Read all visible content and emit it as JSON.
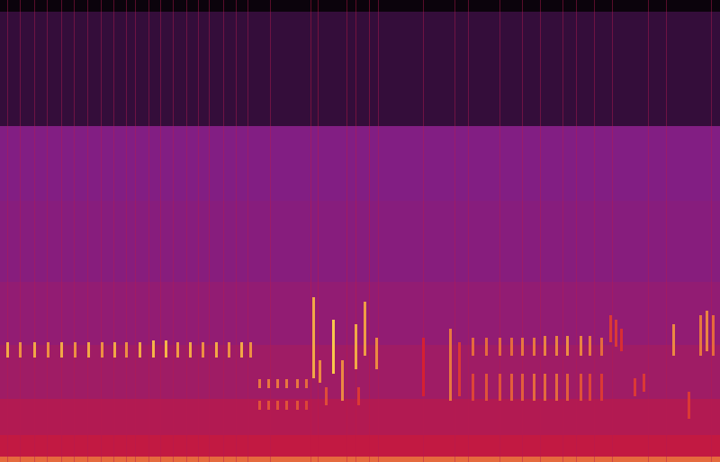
{
  "chart_data": {
    "type": "spectrogram",
    "tick_labels": false,
    "xlim": [
      0,
      800
    ],
    "ylim": [
      0,
      513
    ],
    "color_range": [
      0,
      1
    ],
    "colors": [
      "#000000",
      "#7b1e8a",
      "#d41830",
      "#ffe650"
    ],
    "bands": [
      {
        "y0": 0,
        "y1": 6,
        "value": 0.8
      },
      {
        "y0": 6,
        "y1": 30,
        "value": 0.6
      },
      {
        "y0": 30,
        "y1": 70,
        "value": 0.54
      },
      {
        "y0": 70,
        "y1": 130,
        "value": 0.47
      },
      {
        "y0": 130,
        "y1": 200,
        "value": 0.42
      },
      {
        "y0": 200,
        "y1": 290,
        "value": 0.38
      },
      {
        "y0": 290,
        "y1": 373,
        "value": 0.36
      },
      {
        "y0": 373,
        "y1": 500,
        "value": 0.14
      },
      {
        "y0": 500,
        "y1": 513,
        "value": 0.03
      }
    ],
    "streaks": [
      {
        "x": 8,
        "value": 0.55
      },
      {
        "x": 22,
        "value": 0.55
      },
      {
        "x": 38,
        "value": 0.55
      },
      {
        "x": 52,
        "value": 0.55
      },
      {
        "x": 68,
        "value": 0.55
      },
      {
        "x": 82,
        "value": 0.55
      },
      {
        "x": 97,
        "value": 0.55
      },
      {
        "x": 112,
        "value": 0.55
      },
      {
        "x": 126,
        "value": 0.55
      },
      {
        "x": 140,
        "value": 0.55
      },
      {
        "x": 150,
        "value": 0.55
      },
      {
        "x": 165,
        "value": 0.55
      },
      {
        "x": 178,
        "value": 0.55
      },
      {
        "x": 192,
        "value": 0.55
      },
      {
        "x": 207,
        "value": 0.55
      },
      {
        "x": 220,
        "value": 0.55
      },
      {
        "x": 232,
        "value": 0.55
      },
      {
        "x": 248,
        "value": 0.55
      },
      {
        "x": 262,
        "value": 0.55
      },
      {
        "x": 275,
        "value": 0.55
      },
      {
        "x": 300,
        "value": 0.55
      },
      {
        "x": 345,
        "value": 0.6
      },
      {
        "x": 353,
        "value": 0.6
      },
      {
        "x": 385,
        "value": 0.6
      },
      {
        "x": 395,
        "value": 0.6
      },
      {
        "x": 410,
        "value": 0.6
      },
      {
        "x": 420,
        "value": 0.55
      },
      {
        "x": 470,
        "value": 0.55
      },
      {
        "x": 505,
        "value": 0.55
      },
      {
        "x": 520,
        "value": 0.55
      },
      {
        "x": 555,
        "value": 0.55
      },
      {
        "x": 580,
        "value": 0.55
      },
      {
        "x": 600,
        "value": 0.55
      },
      {
        "x": 625,
        "value": 0.55
      },
      {
        "x": 640,
        "value": 0.55
      },
      {
        "x": 660,
        "value": 0.55
      },
      {
        "x": 680,
        "value": 0.55
      },
      {
        "x": 720,
        "value": 0.55
      },
      {
        "x": 740,
        "value": 0.55
      },
      {
        "x": 790,
        "value": 0.55
      }
    ],
    "calls": [
      {
        "x": 8,
        "y0": 116,
        "y1": 133,
        "value": 0.9
      },
      {
        "x": 22,
        "y0": 116,
        "y1": 133,
        "value": 0.86
      },
      {
        "x": 38,
        "y0": 116,
        "y1": 133,
        "value": 0.9
      },
      {
        "x": 53,
        "y0": 116,
        "y1": 133,
        "value": 0.86
      },
      {
        "x": 68,
        "y0": 116,
        "y1": 133,
        "value": 0.9
      },
      {
        "x": 83,
        "y0": 116,
        "y1": 133,
        "value": 0.86
      },
      {
        "x": 98,
        "y0": 116,
        "y1": 133,
        "value": 0.9
      },
      {
        "x": 113,
        "y0": 116,
        "y1": 133,
        "value": 0.86
      },
      {
        "x": 127,
        "y0": 116,
        "y1": 133,
        "value": 0.9
      },
      {
        "x": 140,
        "y0": 116,
        "y1": 133,
        "value": 0.86
      },
      {
        "x": 155,
        "y0": 116,
        "y1": 133,
        "value": 0.9
      },
      {
        "x": 170,
        "y0": 116,
        "y1": 135,
        "value": 0.92
      },
      {
        "x": 184,
        "y0": 116,
        "y1": 135,
        "value": 0.92
      },
      {
        "x": 197,
        "y0": 116,
        "y1": 133,
        "value": 0.88
      },
      {
        "x": 211,
        "y0": 116,
        "y1": 133,
        "value": 0.9
      },
      {
        "x": 225,
        "y0": 116,
        "y1": 133,
        "value": 0.86
      },
      {
        "x": 240,
        "y0": 116,
        "y1": 133,
        "value": 0.9
      },
      {
        "x": 254,
        "y0": 116,
        "y1": 133,
        "value": 0.86
      },
      {
        "x": 268,
        "y0": 116,
        "y1": 133,
        "value": 0.9
      },
      {
        "x": 278,
        "y0": 116,
        "y1": 133,
        "value": 0.86
      },
      {
        "x": 288,
        "y0": 82,
        "y1": 92,
        "value": 0.82
      },
      {
        "x": 298,
        "y0": 82,
        "y1": 92,
        "value": 0.82
      },
      {
        "x": 308,
        "y0": 82,
        "y1": 92,
        "value": 0.82
      },
      {
        "x": 318,
        "y0": 82,
        "y1": 92,
        "value": 0.82
      },
      {
        "x": 330,
        "y0": 82,
        "y1": 92,
        "value": 0.82
      },
      {
        "x": 340,
        "y0": 82,
        "y1": 92,
        "value": 0.8
      },
      {
        "x": 288,
        "y0": 58,
        "y1": 68,
        "value": 0.76
      },
      {
        "x": 298,
        "y0": 58,
        "y1": 68,
        "value": 0.76
      },
      {
        "x": 308,
        "y0": 58,
        "y1": 68,
        "value": 0.76
      },
      {
        "x": 318,
        "y0": 58,
        "y1": 68,
        "value": 0.76
      },
      {
        "x": 330,
        "y0": 58,
        "y1": 68,
        "value": 0.76
      },
      {
        "x": 340,
        "y0": 58,
        "y1": 68,
        "value": 0.74
      },
      {
        "x": 348,
        "y0": 93,
        "y1": 183,
        "value": 0.9
      },
      {
        "x": 355,
        "y0": 88,
        "y1": 113,
        "value": 0.85
      },
      {
        "x": 370,
        "y0": 98,
        "y1": 158,
        "value": 0.95
      },
      {
        "x": 380,
        "y0": 68,
        "y1": 113,
        "value": 0.85
      },
      {
        "x": 395,
        "y0": 103,
        "y1": 153,
        "value": 0.9
      },
      {
        "x": 405,
        "y0": 118,
        "y1": 178,
        "value": 0.88
      },
      {
        "x": 418,
        "y0": 103,
        "y1": 138,
        "value": 0.85
      },
      {
        "x": 362,
        "y0": 63,
        "y1": 83,
        "value": 0.75
      },
      {
        "x": 398,
        "y0": 63,
        "y1": 83,
        "value": 0.72
      },
      {
        "x": 470,
        "y0": 73,
        "y1": 138,
        "value": 0.68
      },
      {
        "x": 500,
        "y0": 68,
        "y1": 148,
        "value": 0.82
      },
      {
        "x": 510,
        "y0": 73,
        "y1": 133,
        "value": 0.72
      },
      {
        "x": 525,
        "y0": 118,
        "y1": 138,
        "value": 0.8
      },
      {
        "x": 540,
        "y0": 118,
        "y1": 138,
        "value": 0.8
      },
      {
        "x": 555,
        "y0": 118,
        "y1": 138,
        "value": 0.8
      },
      {
        "x": 568,
        "y0": 118,
        "y1": 138,
        "value": 0.8
      },
      {
        "x": 580,
        "y0": 118,
        "y1": 138,
        "value": 0.82
      },
      {
        "x": 593,
        "y0": 118,
        "y1": 138,
        "value": 0.82
      },
      {
        "x": 605,
        "y0": 118,
        "y1": 140,
        "value": 0.84
      },
      {
        "x": 618,
        "y0": 118,
        "y1": 140,
        "value": 0.84
      },
      {
        "x": 630,
        "y0": 118,
        "y1": 140,
        "value": 0.86
      },
      {
        "x": 645,
        "y0": 118,
        "y1": 140,
        "value": 0.84
      },
      {
        "x": 655,
        "y0": 118,
        "y1": 140,
        "value": 0.82
      },
      {
        "x": 668,
        "y0": 118,
        "y1": 138,
        "value": 0.8
      },
      {
        "x": 525,
        "y0": 68,
        "y1": 98,
        "value": 0.74
      },
      {
        "x": 540,
        "y0": 68,
        "y1": 98,
        "value": 0.76
      },
      {
        "x": 555,
        "y0": 68,
        "y1": 98,
        "value": 0.76
      },
      {
        "x": 568,
        "y0": 68,
        "y1": 98,
        "value": 0.78
      },
      {
        "x": 580,
        "y0": 68,
        "y1": 98,
        "value": 0.78
      },
      {
        "x": 593,
        "y0": 68,
        "y1": 98,
        "value": 0.8
      },
      {
        "x": 605,
        "y0": 68,
        "y1": 98,
        "value": 0.8
      },
      {
        "x": 618,
        "y0": 68,
        "y1": 98,
        "value": 0.8
      },
      {
        "x": 630,
        "y0": 68,
        "y1": 98,
        "value": 0.78
      },
      {
        "x": 645,
        "y0": 68,
        "y1": 98,
        "value": 0.76
      },
      {
        "x": 655,
        "y0": 68,
        "y1": 98,
        "value": 0.74
      },
      {
        "x": 668,
        "y0": 68,
        "y1": 98,
        "value": 0.72
      },
      {
        "x": 678,
        "y0": 133,
        "y1": 163,
        "value": 0.72
      },
      {
        "x": 684,
        "y0": 128,
        "y1": 158,
        "value": 0.72
      },
      {
        "x": 690,
        "y0": 123,
        "y1": 148,
        "value": 0.7
      },
      {
        "x": 705,
        "y0": 73,
        "y1": 93,
        "value": 0.72
      },
      {
        "x": 715,
        "y0": 78,
        "y1": 98,
        "value": 0.72
      },
      {
        "x": 748,
        "y0": 118,
        "y1": 153,
        "value": 0.85
      },
      {
        "x": 765,
        "y0": 48,
        "y1": 78,
        "value": 0.72
      },
      {
        "x": 778,
        "y0": 118,
        "y1": 163,
        "value": 0.82
      },
      {
        "x": 785,
        "y0": 123,
        "y1": 168,
        "value": 0.84
      },
      {
        "x": 792,
        "y0": 118,
        "y1": 163,
        "value": 0.8
      }
    ]
  }
}
